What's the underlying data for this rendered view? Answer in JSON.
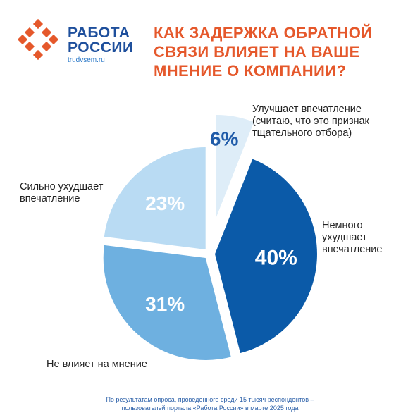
{
  "brand": {
    "line1": "РАБОТА",
    "line2": "РОССИИ",
    "url": "trudvsem.ru",
    "logo_color": "#e5582b"
  },
  "title": {
    "line1": "КАК ЗАДЕРЖКА ОБРАТНОЙ",
    "line2": "СВЯЗИ ВЛИЯЕТ НА ВАШЕ",
    "line3": "МНЕНИЕ О КОМПАНИИ?",
    "color": "#e5582b"
  },
  "chart_data": {
    "type": "pie",
    "unit": "%",
    "slices": [
      {
        "key": "improves",
        "value": 6,
        "label": "6%",
        "color": "#deedf8",
        "label_color": "#1e5aa8",
        "category": [
          "Улучшает впечатление",
          "(считаю, что это признак",
          "тщательного отбора)"
        ]
      },
      {
        "key": "slightly_worse",
        "value": 40,
        "label": "40%",
        "color": "#0b5aa8",
        "label_color": "#ffffff",
        "category": [
          "Немного",
          "ухудшает",
          "впечатление"
        ]
      },
      {
        "key": "no_effect",
        "value": 31,
        "label": "31%",
        "color": "#6eb0e0",
        "label_color": "#ffffff",
        "category": [
          "Не влияет на мнение"
        ]
      },
      {
        "key": "much_worse",
        "value": 23,
        "label": "23%",
        "color": "#b9dbf3",
        "label_color": "#ffffff",
        "category": [
          "Сильно ухудшает",
          "впечатление"
        ]
      }
    ]
  },
  "footer": {
    "line1": "По результатам опроса, проведенного среди 15 тысяч респондентов –",
    "line2": "пользователей портала «Работа России» в марте 2025 года"
  }
}
